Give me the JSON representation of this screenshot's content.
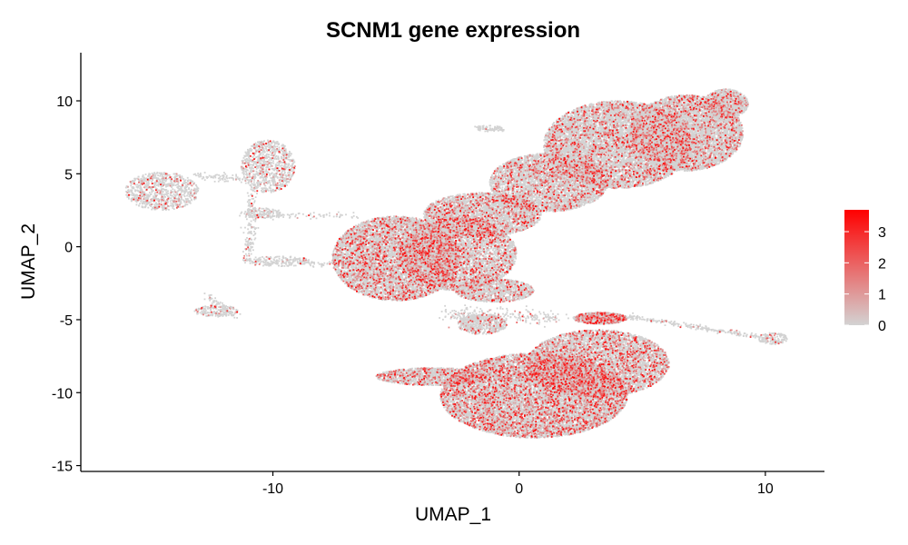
{
  "chart_data": {
    "type": "scatter",
    "title": "SCNM1 gene expression",
    "xlabel": "UMAP_1",
    "ylabel": "UMAP_2",
    "xlim": [
      -17.8,
      12.4
    ],
    "ylim": [
      -15.4,
      13.3
    ],
    "xticks": [
      -10,
      0,
      10
    ],
    "yticks": [
      -15,
      -10,
      -5,
      0,
      5,
      10
    ],
    "grid": false,
    "colorbar": {
      "position": "right",
      "range": [
        0,
        3.7
      ],
      "ticks": [
        0,
        1,
        2,
        3
      ],
      "low_color": "#d3d3d3",
      "high_color": "#ff0000"
    },
    "point_color_zero": "#d3d3d3",
    "clusters": [
      {
        "shape": "ellipse",
        "cx": -14.5,
        "cy": 3.8,
        "rx": 1.5,
        "ry": 1.3,
        "n": 900,
        "p_expr": 0.12
      },
      {
        "shape": "ellipse",
        "cx": -10.2,
        "cy": 5.5,
        "rx": 1.1,
        "ry": 1.8,
        "n": 900,
        "p_expr": 0.12
      },
      {
        "shape": "ellipse",
        "cx": -10.4,
        "cy": 2.3,
        "rx": 0.9,
        "ry": 0.35,
        "n": 120,
        "p_expr": 0.08
      },
      {
        "shape": "ellipse",
        "cx": -9.8,
        "cy": -1.0,
        "rx": 1.4,
        "ry": 0.35,
        "n": 150,
        "p_expr": 0.08
      },
      {
        "shape": "ellipse",
        "cx": -12.3,
        "cy": -4.4,
        "rx": 0.9,
        "ry": 0.4,
        "n": 200,
        "p_expr": 0.08
      },
      {
        "shape": "ellipse",
        "cx": 10.3,
        "cy": -6.3,
        "rx": 0.6,
        "ry": 0.4,
        "n": 150,
        "p_expr": 0.1
      },
      {
        "shape": "ellipse",
        "cx": -1.2,
        "cy": 8.1,
        "rx": 0.5,
        "ry": 0.25,
        "n": 50,
        "p_expr": 0.05
      },
      {
        "shape": "ellipse",
        "cx": -5.0,
        "cy": -0.8,
        "rx": 2.6,
        "ry": 2.9,
        "n": 7500,
        "p_expr": 0.2
      },
      {
        "shape": "ellipse",
        "cx": -2.5,
        "cy": -0.5,
        "rx": 2.4,
        "ry": 2.5,
        "n": 5000,
        "p_expr": 0.18
      },
      {
        "shape": "ellipse",
        "cx": -1.5,
        "cy": 2.2,
        "rx": 2.4,
        "ry": 1.5,
        "n": 3500,
        "p_expr": 0.16
      },
      {
        "shape": "ellipse",
        "cx": 1.2,
        "cy": 4.4,
        "rx": 2.4,
        "ry": 2.0,
        "n": 4500,
        "p_expr": 0.16
      },
      {
        "shape": "ellipse",
        "cx": 4.0,
        "cy": 7.0,
        "rx": 3.0,
        "ry": 3.0,
        "n": 9000,
        "p_expr": 0.14
      },
      {
        "shape": "ellipse",
        "cx": 6.8,
        "cy": 7.8,
        "rx": 2.3,
        "ry": 2.6,
        "n": 6500,
        "p_expr": 0.14
      },
      {
        "shape": "ellipse",
        "cx": 8.4,
        "cy": 9.8,
        "rx": 0.9,
        "ry": 1.0,
        "n": 1200,
        "p_expr": 0.12
      },
      {
        "shape": "ellipse",
        "cx": 0.6,
        "cy": -10.2,
        "rx": 3.8,
        "ry": 2.9,
        "n": 12000,
        "p_expr": 0.22
      },
      {
        "shape": "ellipse",
        "cx": 3.2,
        "cy": -8.0,
        "rx": 2.9,
        "ry": 2.3,
        "n": 6000,
        "p_expr": 0.22
      },
      {
        "shape": "ellipse",
        "cx": -3.5,
        "cy": -8.9,
        "rx": 2.3,
        "ry": 0.6,
        "n": 1500,
        "p_expr": 0.18
      },
      {
        "shape": "ellipse",
        "cx": -1.5,
        "cy": -5.3,
        "rx": 1.0,
        "ry": 0.7,
        "n": 600,
        "p_expr": 0.12
      },
      {
        "shape": "ellipse",
        "cx": 3.3,
        "cy": -4.9,
        "rx": 1.1,
        "ry": 0.4,
        "n": 800,
        "p_expr": 0.3
      },
      {
        "shape": "ellipse",
        "cx": -1.0,
        "cy": -3.0,
        "rx": 1.6,
        "ry": 0.8,
        "n": 1200,
        "p_expr": 0.14
      },
      {
        "shape": "line",
        "x0": -13.2,
        "y0": 4.9,
        "x1": -11.1,
        "y1": 4.6,
        "spread": 0.12,
        "n": 80,
        "p_expr": 0.05
      },
      {
        "shape": "line",
        "x0": -10.8,
        "y0": 4.0,
        "x1": -11.0,
        "y1": -1.0,
        "spread": 0.12,
        "n": 160,
        "p_expr": 0.05
      },
      {
        "shape": "line",
        "x0": -11.2,
        "y0": 2.2,
        "x1": -6.5,
        "y1": 2.1,
        "spread": 0.12,
        "n": 100,
        "p_expr": 0.05
      },
      {
        "shape": "line",
        "x0": -11.0,
        "y0": -1.0,
        "x1": -6.5,
        "y1": -1.2,
        "spread": 0.12,
        "n": 110,
        "p_expr": 0.05
      },
      {
        "shape": "line",
        "x0": -12.8,
        "y0": -3.2,
        "x1": -11.5,
        "y1": -4.8,
        "spread": 0.08,
        "n": 60,
        "p_expr": 0.05
      },
      {
        "shape": "line",
        "x0": -1.8,
        "y0": 8.2,
        "x1": -0.6,
        "y1": 8.0,
        "spread": 0.08,
        "n": 40,
        "p_expr": 0.05
      },
      {
        "shape": "line",
        "x0": 4.5,
        "y0": -4.8,
        "x1": 9.8,
        "y1": -6.2,
        "spread": 0.08,
        "n": 220,
        "p_expr": 0.06
      },
      {
        "shape": "line",
        "x0": -3.0,
        "y0": -4.6,
        "x1": 1.5,
        "y1": -4.9,
        "spread": 0.25,
        "n": 250,
        "p_expr": 0.1
      }
    ]
  }
}
